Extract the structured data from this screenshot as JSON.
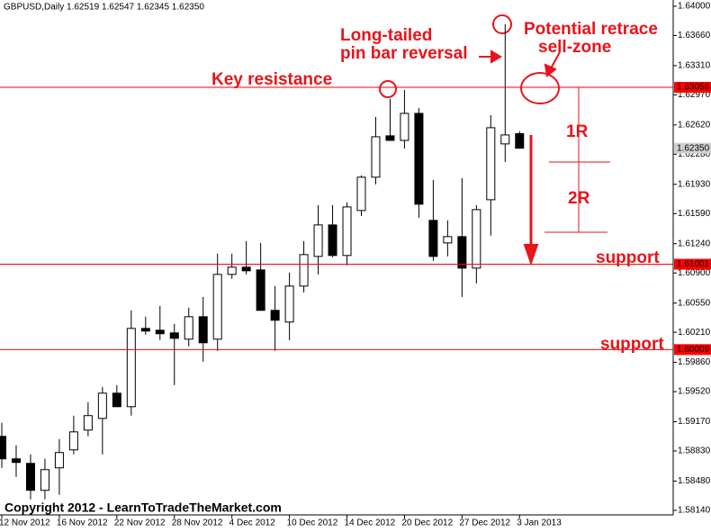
{
  "chart_data": {
    "type": "candlestick",
    "title": "GBPUSD,Daily  1.62519 1.62547 1.62345 1.62350",
    "categories": [
      "12 Nov 2012",
      null,
      null,
      null,
      "16 Nov 2012",
      null,
      null,
      null,
      "22 Nov 2012",
      null,
      null,
      null,
      "28 Nov 2012",
      null,
      null,
      null,
      "4 Dec 2012",
      null,
      null,
      null,
      "10 Dec 2012",
      null,
      null,
      null,
      "14 Dec 2012",
      null,
      null,
      null,
      "20 Dec 2012",
      null,
      null,
      null,
      "27 Dec 2012",
      null,
      null,
      null,
      "3 Jan 2013"
    ],
    "open": [
      1.59,
      1.58739,
      1.58686,
      1.58373,
      1.58634,
      1.58843,
      1.59073,
      1.59209,
      1.59502,
      1.59345,
      1.60255,
      1.60234,
      1.60203,
      1.6013,
      1.60391,
      1.6013,
      1.60883,
      1.60967,
      1.60935,
      1.60465,
      1.60329,
      1.60747,
      1.61092,
      1.61458,
      1.61103,
      1.61626,
      1.62013,
      1.62494,
      1.62441,
      1.62755,
      1.61511,
      1.61249,
      1.61322,
      1.60956,
      1.61751,
      1.624,
      1.62519
    ],
    "high": [
      1.59157,
      1.58896,
      1.58791,
      1.58739,
      1.58969,
      1.59241,
      1.59398,
      1.59575,
      1.59596,
      1.60465,
      1.60391,
      1.60517,
      1.60308,
      1.60496,
      1.60621,
      1.61124,
      1.61124,
      1.6127,
      1.61249,
      1.60747,
      1.60904,
      1.6127,
      1.61688,
      1.61688,
      1.6172,
      1.62034,
      1.62713,
      1.62923,
      1.63027,
      1.62818,
      1.61981,
      1.61511,
      1.62002,
      1.61688,
      1.62734,
      1.63791,
      1.62547
    ],
    "low": [
      1.58634,
      1.58529,
      1.58268,
      1.58268,
      1.5832,
      1.58791,
      1.59,
      1.58791,
      1.59345,
      1.59241,
      1.60182,
      1.60119,
      1.59596,
      1.60046,
      1.59868,
      1.59994,
      1.60831,
      1.60883,
      1.60465,
      1.59994,
      1.60119,
      1.60674,
      1.60883,
      1.61082,
      1.60988,
      1.61563,
      1.61929,
      1.62441,
      1.62347,
      1.61542,
      1.6104,
      1.61092,
      1.60621,
      1.60778,
      1.61333,
      1.6219,
      1.62345
    ],
    "close": [
      1.58739,
      1.58697,
      1.58373,
      1.58613,
      1.58812,
      1.59052,
      1.59241,
      1.59502,
      1.59345,
      1.60255,
      1.60224,
      1.60193,
      1.6014,
      1.60391,
      1.60088,
      1.60883,
      1.60967,
      1.60925,
      1.60465,
      1.6035,
      1.60747,
      1.61113,
      1.61458,
      1.61103,
      1.61667,
      1.62013,
      1.62483,
      1.62441,
      1.62755,
      1.61699,
      1.61092,
      1.61322,
      1.60956,
      1.61636,
      1.62588,
      1.62504,
      1.6235
    ],
    "up_color": "#ffffff",
    "down_color": "#000000",
    "ylim": [
      1.58087,
      1.64073
    ],
    "yticks": [
      {
        "value": 1.64,
        "label": "1.64000"
      },
      {
        "value": 1.6366,
        "label": "1.63660"
      },
      {
        "value": 1.6331,
        "label": "1.63310"
      },
      {
        "value": 1.6297,
        "label": "1.62970"
      },
      {
        "value": 1.6262,
        "label": "1.62620"
      },
      {
        "value": 1.6228,
        "label": "1.62280"
      },
      {
        "value": 1.6193,
        "label": "1.61930"
      },
      {
        "value": 1.6159,
        "label": "1.61590"
      },
      {
        "value": 1.6124,
        "label": "1.61240"
      },
      {
        "value": 1.609,
        "label": "1.60900"
      },
      {
        "value": 1.6055,
        "label": "1.60550"
      },
      {
        "value": 1.6021,
        "label": "1.60210"
      },
      {
        "value": 1.5986,
        "label": "1.59860"
      },
      {
        "value": 1.5952,
        "label": "1.59520"
      },
      {
        "value": 1.5917,
        "label": "1.59170"
      },
      {
        "value": 1.5883,
        "label": "1.58830"
      },
      {
        "value": 1.5848,
        "label": "1.58480"
      },
      {
        "value": 1.5814,
        "label": "1.58140"
      }
    ],
    "hlines": [
      1.63058,
      1.61001,
      1.60009
    ],
    "hline_color": "#ff0000",
    "bid": {
      "value": 1.6235,
      "label": "1.62350"
    },
    "annotations": [
      "Key resistance",
      "Long-tailed",
      "pin bar reversal",
      "Potential retrace",
      "sell-zone",
      "1R",
      "2R",
      "support",
      "support"
    ],
    "annotation_color": "#e8141a",
    "footer": "Copyright 2012 - LearnToTradeTheMarket.com"
  }
}
